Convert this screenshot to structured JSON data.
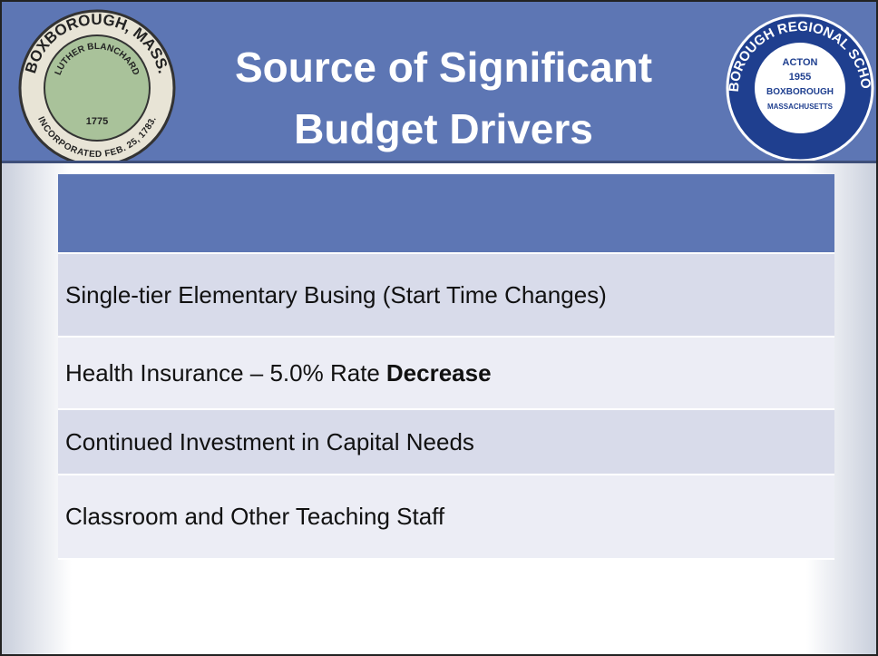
{
  "header": {
    "title_lines": [
      "Source of Significant",
      "Budget Drivers"
    ]
  },
  "seals": {
    "left": {
      "top": "BOXBOROUGH, MASS.",
      "inner": "LUTHER BLANCHARD",
      "year": "1775",
      "bottom": "INCORPORATED FEB. 25, 1783."
    },
    "right": {
      "outer": "ACTON-BOXBOROUGH REGIONAL SCHOOL DISTRICT",
      "lines": [
        "ACTON",
        "1955",
        "BOXBOROUGH",
        "MASSACHUSETTS"
      ]
    }
  },
  "table": {
    "rows": [
      [
        "Single-tier Elementary Busing (Start Time Changes)"
      ],
      [
        "Health Insurance – 5.0% Rate",
        "Decrease"
      ],
      [
        "Continued Investment in Capital Needs"
      ],
      [
        "Classroom and Other Teaching Staff"
      ]
    ]
  }
}
